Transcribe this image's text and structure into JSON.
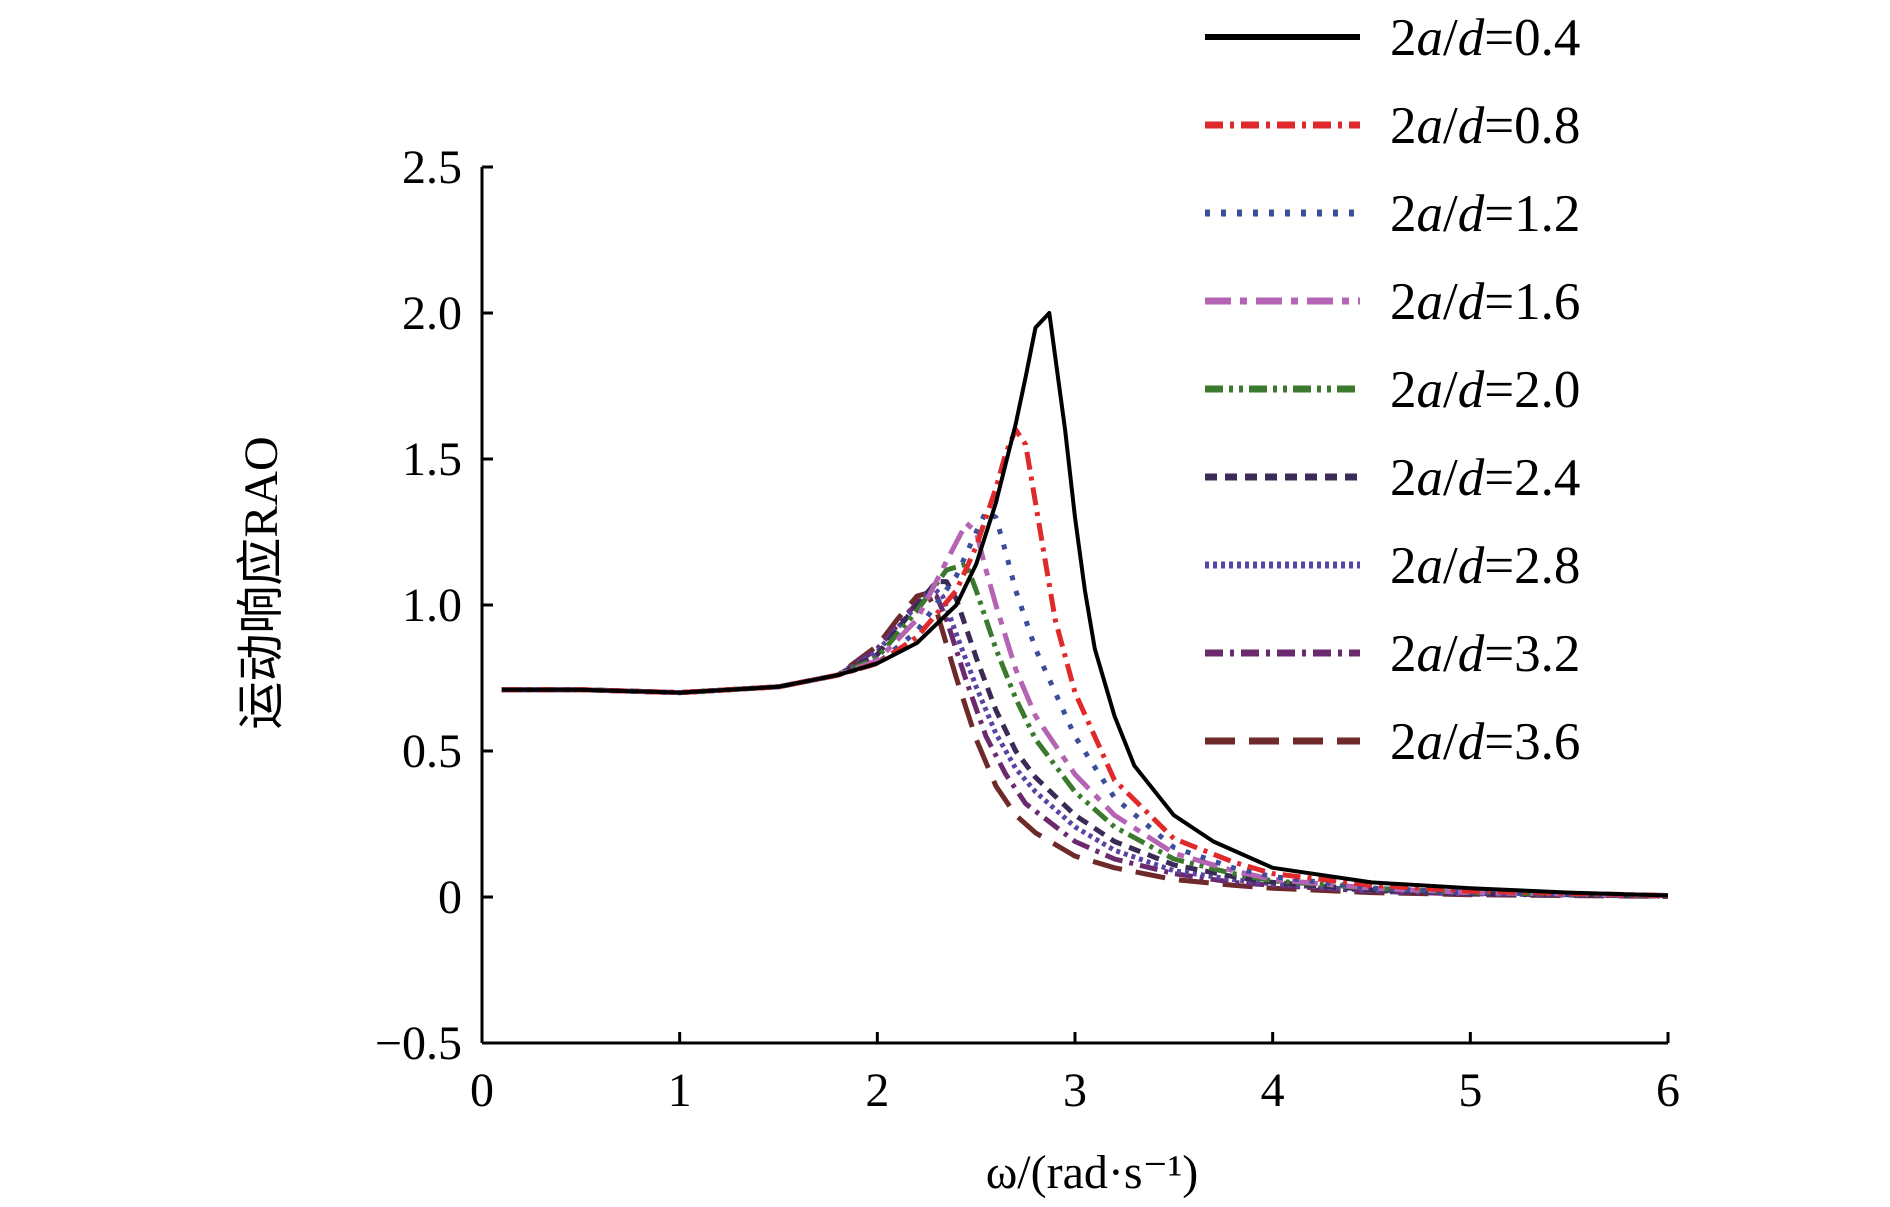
{
  "chart_data": {
    "type": "line",
    "xlabel": "ω/(rad·s⁻¹)",
    "ylabel": "运动响应RAO",
    "xlim": [
      0,
      6
    ],
    "ylim": [
      -0.5,
      2.5
    ],
    "xticks": [
      "0",
      "1",
      "2",
      "3",
      "4",
      "5",
      "6"
    ],
    "yticks": [
      "−0.5",
      "0",
      "0.5",
      "1.0",
      "1.5",
      "2.0",
      "2.5"
    ],
    "grid": false,
    "legend_position": "top-right",
    "series": [
      {
        "name": "2a/d=0.4",
        "color": "#000000",
        "dash": "solid",
        "x": [
          0.1,
          0.5,
          1.0,
          1.5,
          1.8,
          2.0,
          2.2,
          2.4,
          2.5,
          2.6,
          2.7,
          2.75,
          2.8,
          2.87,
          2.95,
          3.0,
          3.05,
          3.1,
          3.2,
          3.3,
          3.5,
          3.7,
          4.0,
          4.5,
          5.0,
          5.5,
          6.0
        ],
        "y": [
          0.71,
          0.71,
          0.7,
          0.72,
          0.76,
          0.8,
          0.87,
          1.0,
          1.14,
          1.35,
          1.62,
          1.78,
          1.95,
          2.0,
          1.6,
          1.3,
          1.05,
          0.85,
          0.62,
          0.45,
          0.28,
          0.19,
          0.1,
          0.05,
          0.03,
          0.015,
          0.005
        ]
      },
      {
        "name": "2a/d=0.8",
        "color": "#e0292a",
        "dash": "dashdot",
        "x": [
          0.1,
          0.5,
          1.0,
          1.5,
          1.8,
          2.0,
          2.2,
          2.4,
          2.5,
          2.6,
          2.65,
          2.7,
          2.75,
          2.8,
          2.85,
          2.9,
          3.0,
          3.2,
          3.5,
          3.8,
          4.0,
          4.5,
          5.0,
          6.0
        ],
        "y": [
          0.71,
          0.71,
          0.7,
          0.72,
          0.76,
          0.8,
          0.89,
          1.05,
          1.2,
          1.4,
          1.52,
          1.6,
          1.55,
          1.35,
          1.15,
          0.95,
          0.7,
          0.4,
          0.2,
          0.12,
          0.08,
          0.04,
          0.02,
          0.005
        ]
      },
      {
        "name": "2a/d=1.2",
        "color": "#3b4d9b",
        "dash": "dot",
        "x": [
          0.1,
          0.5,
          1.0,
          1.5,
          1.8,
          2.0,
          2.2,
          2.4,
          2.5,
          2.55,
          2.6,
          2.65,
          2.7,
          2.8,
          3.0,
          3.2,
          3.5,
          3.8,
          4.0,
          4.5,
          5.0,
          6.0
        ],
        "y": [
          0.71,
          0.71,
          0.7,
          0.72,
          0.76,
          0.8,
          0.91,
          1.1,
          1.25,
          1.32,
          1.3,
          1.18,
          1.05,
          0.85,
          0.55,
          0.34,
          0.17,
          0.1,
          0.07,
          0.03,
          0.015,
          0.005
        ]
      },
      {
        "name": "2a/d=1.6",
        "color": "#b563b3",
        "dash": "longdashdot",
        "x": [
          0.1,
          0.5,
          1.0,
          1.5,
          1.8,
          2.0,
          2.2,
          2.35,
          2.45,
          2.5,
          2.55,
          2.6,
          2.7,
          2.8,
          3.0,
          3.2,
          3.5,
          3.8,
          4.0,
          4.5,
          5.0,
          6.0
        ],
        "y": [
          0.71,
          0.71,
          0.7,
          0.72,
          0.76,
          0.81,
          0.95,
          1.15,
          1.28,
          1.25,
          1.12,
          1.0,
          0.78,
          0.62,
          0.42,
          0.28,
          0.15,
          0.09,
          0.06,
          0.03,
          0.015,
          0.005
        ]
      },
      {
        "name": "2a/d=2.0",
        "color": "#3b7a2e",
        "dash": "dashdotdot",
        "x": [
          0.1,
          0.5,
          1.0,
          1.5,
          1.8,
          2.0,
          2.2,
          2.35,
          2.45,
          2.5,
          2.6,
          2.7,
          2.8,
          3.0,
          3.2,
          3.5,
          3.8,
          4.0,
          4.5,
          5.0,
          6.0
        ],
        "y": [
          0.71,
          0.71,
          0.7,
          0.72,
          0.76,
          0.82,
          0.98,
          1.12,
          1.14,
          1.05,
          0.85,
          0.68,
          0.54,
          0.36,
          0.24,
          0.13,
          0.08,
          0.055,
          0.03,
          0.015,
          0.005
        ]
      },
      {
        "name": "2a/d=2.4",
        "color": "#3a2a55",
        "dash": "shortdash",
        "x": [
          0.1,
          0.5,
          1.0,
          1.5,
          1.8,
          2.0,
          2.2,
          2.3,
          2.35,
          2.4,
          2.5,
          2.6,
          2.7,
          2.8,
          3.0,
          3.2,
          3.5,
          3.8,
          4.0,
          4.5,
          5.0,
          6.0
        ],
        "y": [
          0.71,
          0.71,
          0.7,
          0.72,
          0.76,
          0.83,
          1.0,
          1.08,
          1.08,
          1.02,
          0.82,
          0.64,
          0.5,
          0.41,
          0.28,
          0.19,
          0.11,
          0.07,
          0.05,
          0.025,
          0.012,
          0.004
        ]
      },
      {
        "name": "2a/d=2.8",
        "color": "#5a44a3",
        "dash": "dense",
        "x": [
          0.1,
          0.5,
          1.0,
          1.5,
          1.8,
          2.0,
          2.2,
          2.28,
          2.33,
          2.4,
          2.5,
          2.6,
          2.7,
          2.8,
          3.0,
          3.2,
          3.5,
          3.8,
          4.0,
          4.5,
          5.0,
          6.0
        ],
        "y": [
          0.71,
          0.71,
          0.7,
          0.72,
          0.76,
          0.84,
          1.0,
          1.06,
          1.03,
          0.9,
          0.72,
          0.56,
          0.44,
          0.36,
          0.24,
          0.16,
          0.09,
          0.06,
          0.045,
          0.022,
          0.011,
          0.004
        ]
      },
      {
        "name": "2a/d=3.2",
        "color": "#6b2a6e",
        "dash": "dashdot",
        "x": [
          0.1,
          0.5,
          1.0,
          1.5,
          1.8,
          2.0,
          2.15,
          2.25,
          2.3,
          2.35,
          2.45,
          2.55,
          2.65,
          2.75,
          3.0,
          3.2,
          3.5,
          3.8,
          4.0,
          4.5,
          5.0,
          6.0
        ],
        "y": [
          0.71,
          0.71,
          0.7,
          0.72,
          0.76,
          0.85,
          0.97,
          1.04,
          1.03,
          0.95,
          0.74,
          0.55,
          0.42,
          0.32,
          0.19,
          0.13,
          0.08,
          0.05,
          0.04,
          0.02,
          0.01,
          0.003
        ]
      },
      {
        "name": "2a/d=3.6",
        "color": "#6e2a2a",
        "dash": "longdash",
        "x": [
          0.1,
          0.5,
          1.0,
          1.5,
          1.8,
          2.0,
          2.1,
          2.2,
          2.25,
          2.3,
          2.4,
          2.5,
          2.6,
          2.7,
          2.8,
          3.0,
          3.2,
          3.5,
          3.8,
          4.0,
          4.5,
          5.0,
          6.0
        ],
        "y": [
          0.71,
          0.71,
          0.7,
          0.72,
          0.76,
          0.86,
          0.95,
          1.03,
          1.04,
          0.98,
          0.75,
          0.54,
          0.38,
          0.28,
          0.22,
          0.14,
          0.1,
          0.06,
          0.04,
          0.03,
          0.015,
          0.008,
          0.002
        ]
      }
    ]
  }
}
